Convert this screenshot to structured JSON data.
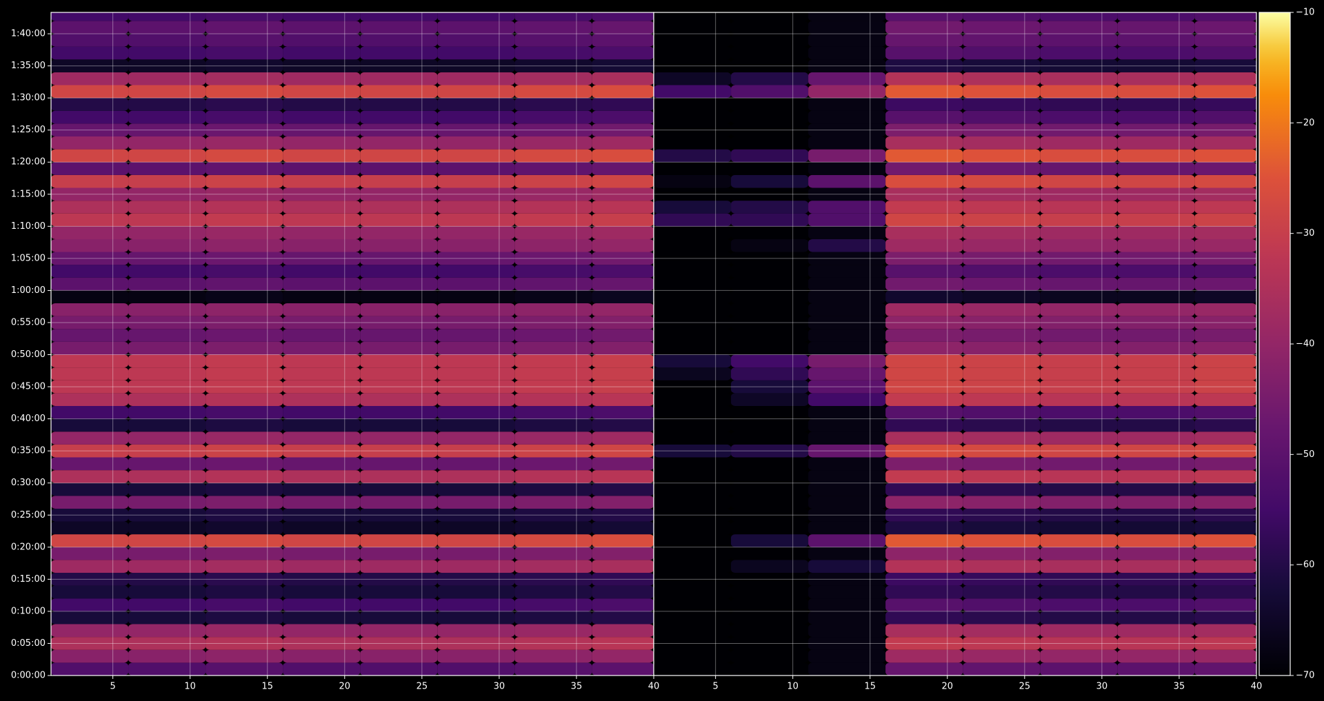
{
  "chart_data": [
    {
      "type": "heatmap",
      "xlim": [
        1,
        40
      ],
      "xticks": [
        5,
        10,
        15,
        20,
        25,
        30,
        35,
        40
      ],
      "ylim": [
        0,
        6200
      ],
      "yticks": [
        {
          "value": 0,
          "label": "0:00:00"
        },
        {
          "value": 300,
          "label": "0:05:00"
        },
        {
          "value": 600,
          "label": "0:10:00"
        },
        {
          "value": 900,
          "label": "0:15:00"
        },
        {
          "value": 1200,
          "label": "0:20:00"
        },
        {
          "value": 1500,
          "label": "0:25:00"
        },
        {
          "value": 1800,
          "label": "0:30:00"
        },
        {
          "value": 2100,
          "label": "0:35:00"
        },
        {
          "value": 2400,
          "label": "0:40:00"
        },
        {
          "value": 2700,
          "label": "0:45:00"
        },
        {
          "value": 3000,
          "label": "0:50:00"
        },
        {
          "value": 3300,
          "label": "0:55:00"
        },
        {
          "value": 3600,
          "label": "1:00:00"
        },
        {
          "value": 3900,
          "label": "1:05:00"
        },
        {
          "value": 4200,
          "label": "1:10:00"
        },
        {
          "value": 4500,
          "label": "1:15:00"
        },
        {
          "value": 4800,
          "label": "1:20:00"
        },
        {
          "value": 5100,
          "label": "1:25:00"
        },
        {
          "value": 5400,
          "label": "1:30:00"
        },
        {
          "value": 5700,
          "label": "1:35:00"
        },
        {
          "value": 6000,
          "label": "1:40:00"
        }
      ],
      "grid": true,
      "colormap": "inferno",
      "clim": [
        -70,
        -10
      ],
      "cticks": [
        {
          "value": -70,
          "label": "−70"
        },
        {
          "value": -60,
          "label": "−60"
        },
        {
          "value": -50,
          "label": "−50"
        },
        {
          "value": -40,
          "label": "−40"
        },
        {
          "value": -30,
          "label": "−30"
        },
        {
          "value": -20,
          "label": "−20"
        },
        {
          "value": -10,
          "label": "−10"
        }
      ],
      "x_bins": [
        1,
        6,
        11,
        16,
        21,
        26,
        31,
        36,
        40
      ],
      "y_bins": [
        0,
        120,
        240,
        360,
        480,
        600,
        720,
        840,
        960,
        1080,
        1200,
        1320,
        1440,
        1560,
        1680,
        1800,
        1920,
        2040,
        2160,
        2280,
        2400,
        2520,
        2640,
        2760,
        2880,
        3000,
        3120,
        3240,
        3360,
        3480,
        3600,
        3720,
        3840,
        3960,
        4080,
        4200,
        4320,
        4440,
        4560,
        4680,
        4800,
        4920,
        5040,
        5160,
        5280,
        5400,
        5520,
        5640,
        5760,
        5880,
        6000,
        6120,
        6240
      ],
      "values": [
        [
          -52,
          -52,
          -51,
          -52,
          -52,
          -52,
          -51,
          -50
        ],
        [
          -42,
          -42,
          -41,
          -42,
          -42,
          -42,
          -41,
          -40
        ],
        [
          -35,
          -35,
          -34,
          -35,
          -35,
          -35,
          -34,
          -33
        ],
        [
          -40,
          -40,
          -39,
          -40,
          -40,
          -40,
          -39,
          -38
        ],
        [
          -62,
          -62,
          -61,
          -62,
          -62,
          -62,
          -61,
          -60
        ],
        [
          -55,
          -55,
          -54,
          -55,
          -55,
          -55,
          -54,
          -53
        ],
        [
          -62,
          -62,
          -61,
          -62,
          -62,
          -62,
          -61,
          -60
        ],
        [
          -60,
          -60,
          -59,
          -60,
          -60,
          -60,
          -59,
          -58
        ],
        [
          -38,
          -38,
          -37,
          -38,
          -38,
          -38,
          -37,
          -36
        ],
        [
          -45,
          -45,
          -44,
          -45,
          -45,
          -45,
          -44,
          -43
        ],
        [
          -28,
          -28,
          -27,
          -28,
          -28,
          -28,
          -27,
          -26
        ],
        [
          -65,
          -65,
          -64,
          -65,
          -65,
          -65,
          -64,
          -63
        ],
        [
          -62,
          -62,
          -61,
          -62,
          -62,
          -62,
          -61,
          -60
        ],
        [
          -45,
          -45,
          -44,
          -45,
          -45,
          -45,
          -44,
          -43
        ],
        [
          -62,
          -62,
          -61,
          -62,
          -62,
          -62,
          -61,
          -60
        ],
        [
          -35,
          -35,
          -34,
          -35,
          -35,
          -35,
          -34,
          -33
        ],
        [
          -48,
          -48,
          -47,
          -48,
          -48,
          -48,
          -47,
          -46
        ],
        [
          -30,
          -30,
          -29,
          -30,
          -30,
          -30,
          -29,
          -28
        ],
        [
          -40,
          -40,
          -39,
          -40,
          -40,
          -40,
          -39,
          -38
        ],
        [
          -62,
          -62,
          -61,
          -62,
          -62,
          -62,
          -61,
          -60
        ],
        [
          -55,
          -55,
          -54,
          -55,
          -55,
          -55,
          -54,
          -53
        ],
        [
          -35,
          -35,
          -34,
          -35,
          -35,
          -35,
          -34,
          -33
        ],
        [
          -32,
          -32,
          -31,
          -32,
          -32,
          -32,
          -31,
          -30
        ],
        [
          -32,
          -32,
          -31,
          -32,
          -32,
          -32,
          -31,
          -30
        ],
        [
          -32,
          -32,
          -31,
          -32,
          -32,
          -32,
          -31,
          -30
        ],
        [
          -45,
          -45,
          -44,
          -45,
          -45,
          -45,
          -44,
          -43
        ],
        [
          -48,
          -48,
          -47,
          -48,
          -48,
          -48,
          -47,
          -46
        ],
        [
          -45,
          -45,
          -44,
          -45,
          -45,
          -45,
          -44,
          -43
        ],
        [
          -42,
          -42,
          -41,
          -42,
          -42,
          -42,
          -41,
          -40
        ],
        [
          -68,
          -68,
          -67,
          -68,
          -68,
          -68,
          -67,
          -66
        ],
        [
          -50,
          -50,
          -49,
          -50,
          -50,
          -50,
          -49,
          -48
        ],
        [
          -55,
          -55,
          -54,
          -55,
          -55,
          -55,
          -54,
          -53
        ],
        [
          -48,
          -48,
          -47,
          -48,
          -48,
          -48,
          -47,
          -46
        ],
        [
          -42,
          -42,
          -41,
          -42,
          -42,
          -42,
          -41,
          -40
        ],
        [
          -40,
          -40,
          -39,
          -40,
          -40,
          -40,
          -39,
          -38
        ],
        [
          -32,
          -32,
          -31,
          -32,
          -32,
          -32,
          -31,
          -30
        ],
        [
          -35,
          -35,
          -34,
          -35,
          -35,
          -35,
          -34,
          -33
        ],
        [
          -40,
          -40,
          -39,
          -40,
          -40,
          -40,
          -39,
          -38
        ],
        [
          -30,
          -30,
          -29,
          -30,
          -30,
          -30,
          -29,
          -28
        ],
        [
          -50,
          -50,
          -49,
          -50,
          -50,
          -50,
          -49,
          -48
        ],
        [
          -28,
          -28,
          -27,
          -28,
          -28,
          -28,
          -27,
          -26
        ],
        [
          -40,
          -40,
          -39,
          -40,
          -40,
          -40,
          -39,
          -38
        ],
        [
          -48,
          -48,
          -47,
          -48,
          -48,
          -48,
          -47,
          -46
        ],
        [
          -55,
          -55,
          -54,
          -55,
          -55,
          -55,
          -54,
          -53
        ],
        [
          -60,
          -60,
          -59,
          -60,
          -60,
          -60,
          -59,
          -58
        ],
        [
          -28,
          -28,
          -27,
          -28,
          -28,
          -28,
          -27,
          -26
        ],
        [
          -38,
          -38,
          -37,
          -38,
          -38,
          -38,
          -37,
          -36
        ],
        [
          -65,
          -65,
          -64,
          -65,
          -65,
          -65,
          -64,
          -63
        ],
        [
          -55,
          -55,
          -54,
          -55,
          -55,
          -55,
          -54,
          -53
        ],
        [
          -52,
          -52,
          -51,
          -52,
          -52,
          -52,
          -51,
          -50
        ],
        [
          -50,
          -50,
          -49,
          -50,
          -50,
          -50,
          -49,
          -48
        ],
        [
          -55,
          -55,
          -54,
          -55,
          -55,
          -55,
          -54,
          -53
        ]
      ]
    },
    {
      "type": "heatmap",
      "sharey": true,
      "xlim": [
        1,
        40
      ],
      "xticks": [
        5,
        10,
        15,
        20,
        25,
        30,
        35,
        40
      ],
      "grid": true,
      "colormap": "inferno",
      "clim": [
        -70,
        -10
      ],
      "x_bins": [
        1,
        6,
        11,
        16,
        21,
        26,
        31,
        36,
        40
      ],
      "values": [
        [
          -70,
          -70,
          -68,
          -48,
          -49,
          -50,
          -50,
          -49
        ],
        [
          -70,
          -70,
          -68,
          -38,
          -39,
          -40,
          -40,
          -39
        ],
        [
          -70,
          -70,
          -68,
          -31,
          -32,
          -33,
          -33,
          -32
        ],
        [
          -70,
          -70,
          -68,
          -36,
          -37,
          -38,
          -38,
          -37
        ],
        [
          -70,
          -70,
          -68,
          -58,
          -59,
          -60,
          -60,
          -59
        ],
        [
          -70,
          -70,
          -68,
          -51,
          -52,
          -53,
          -53,
          -52
        ],
        [
          -70,
          -70,
          -68,
          -58,
          -59,
          -60,
          -60,
          -59
        ],
        [
          -70,
          -70,
          -68,
          -56,
          -57,
          -58,
          -58,
          -57
        ],
        [
          -70,
          -66,
          -62,
          -34,
          -35,
          -36,
          -36,
          -35
        ],
        [
          -70,
          -70,
          -68,
          -41,
          -42,
          -43,
          -43,
          -42
        ],
        [
          -70,
          -62,
          -50,
          -24,
          -25,
          -26,
          -26,
          -25
        ],
        [
          -70,
          -70,
          -68,
          -61,
          -62,
          -63,
          -63,
          -62
        ],
        [
          -70,
          -70,
          -68,
          -58,
          -59,
          -60,
          -60,
          -59
        ],
        [
          -70,
          -70,
          -68,
          -41,
          -42,
          -43,
          -43,
          -42
        ],
        [
          -70,
          -70,
          -68,
          -58,
          -59,
          -60,
          -60,
          -59
        ],
        [
          -70,
          -70,
          -68,
          -31,
          -32,
          -33,
          -33,
          -32
        ],
        [
          -70,
          -70,
          -68,
          -44,
          -45,
          -46,
          -46,
          -45
        ],
        [
          -62,
          -60,
          -48,
          -26,
          -27,
          -28,
          -28,
          -27
        ],
        [
          -70,
          -70,
          -68,
          -36,
          -37,
          -38,
          -38,
          -37
        ],
        [
          -70,
          -70,
          -68,
          -58,
          -59,
          -60,
          -60,
          -59
        ],
        [
          -70,
          -70,
          -68,
          -51,
          -52,
          -53,
          -53,
          -52
        ],
        [
          -70,
          -65,
          -55,
          -31,
          -32,
          -33,
          -33,
          -32
        ],
        [
          -70,
          -62,
          -50,
          -28,
          -29,
          -30,
          -30,
          -29
        ],
        [
          -66,
          -58,
          -48,
          -28,
          -29,
          -30,
          -30,
          -29
        ],
        [
          -62,
          -55,
          -45,
          -28,
          -29,
          -30,
          -30,
          -29
        ],
        [
          -70,
          -70,
          -68,
          -41,
          -42,
          -43,
          -43,
          -42
        ],
        [
          -70,
          -70,
          -68,
          -44,
          -45,
          -46,
          -46,
          -45
        ],
        [
          -70,
          -70,
          -68,
          -41,
          -42,
          -43,
          -43,
          -42
        ],
        [
          -70,
          -70,
          -68,
          -38,
          -39,
          -40,
          -40,
          -39
        ],
        [
          -70,
          -70,
          -68,
          -64,
          -65,
          -66,
          -66,
          -65
        ],
        [
          -70,
          -70,
          -68,
          -46,
          -47,
          -48,
          -48,
          -47
        ],
        [
          -70,
          -70,
          -68,
          -51,
          -52,
          -53,
          -53,
          -52
        ],
        [
          -70,
          -70,
          -68,
          -44,
          -45,
          -46,
          -46,
          -45
        ],
        [
          -70,
          -68,
          -60,
          -38,
          -39,
          -40,
          -40,
          -39
        ],
        [
          -70,
          -70,
          -68,
          -36,
          -37,
          -38,
          -38,
          -37
        ],
        [
          -58,
          -58,
          -52,
          -28,
          -29,
          -30,
          -30,
          -29
        ],
        [
          -62,
          -60,
          -52,
          -31,
          -32,
          -33,
          -33,
          -32
        ],
        [
          -70,
          -70,
          -68,
          -36,
          -37,
          -38,
          -38,
          -37
        ],
        [
          -68,
          -62,
          -50,
          -26,
          -27,
          -28,
          -28,
          -27
        ],
        [
          -70,
          -70,
          -68,
          -46,
          -47,
          -48,
          -48,
          -47
        ],
        [
          -60,
          -58,
          -45,
          -24,
          -25,
          -26,
          -26,
          -25
        ],
        [
          -70,
          -70,
          -68,
          -36,
          -37,
          -38,
          -38,
          -37
        ],
        [
          -70,
          -70,
          -68,
          -44,
          -45,
          -46,
          -46,
          -45
        ],
        [
          -70,
          -70,
          -68,
          -51,
          -52,
          -53,
          -53,
          -52
        ],
        [
          -70,
          -70,
          -68,
          -56,
          -57,
          -58,
          -58,
          -57
        ],
        [
          -55,
          -52,
          -40,
          -24,
          -25,
          -26,
          -26,
          -25
        ],
        [
          -65,
          -60,
          -48,
          -34,
          -35,
          -36,
          -36,
          -35
        ],
        [
          -70,
          -70,
          -68,
          -61,
          -62,
          -63,
          -63,
          -62
        ],
        [
          -70,
          -70,
          -68,
          -51,
          -52,
          -53,
          -53,
          -52
        ],
        [
          -70,
          -70,
          -68,
          -48,
          -49,
          -50,
          -50,
          -49
        ],
        [
          -70,
          -70,
          -68,
          -46,
          -47,
          -48,
          -48,
          -47
        ],
        [
          -70,
          -70,
          -68,
          -51,
          -52,
          -53,
          -53,
          -52
        ]
      ]
    }
  ]
}
